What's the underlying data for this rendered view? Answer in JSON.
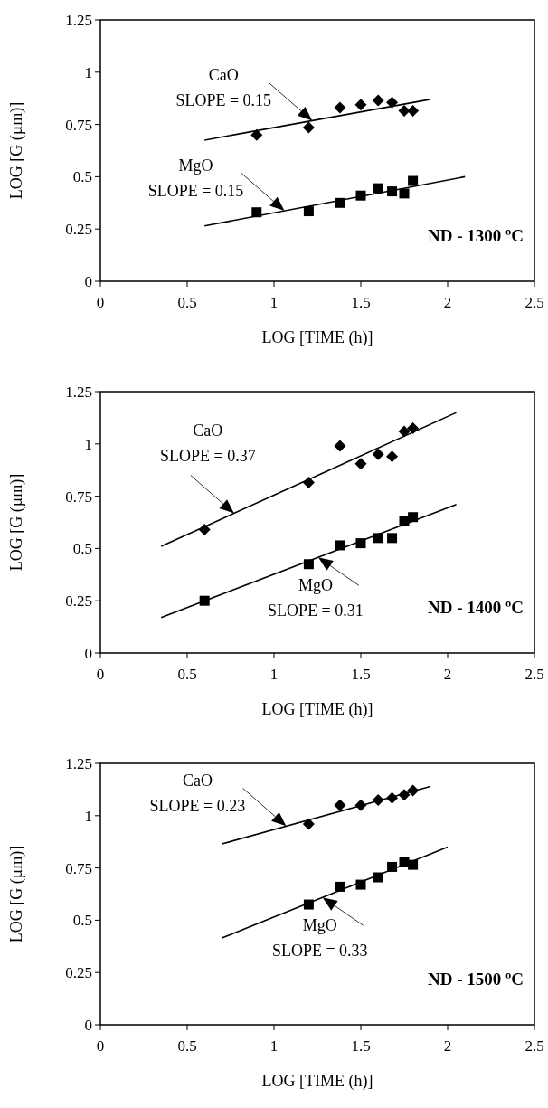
{
  "chart_data": [
    {
      "type": "scatter",
      "title": "ND - 1300 ºC",
      "xlabel": "LOG [TIME (h)]",
      "ylabel": "LOG [G (µm)]",
      "xlim": [
        0,
        2.5
      ],
      "ylim": [
        0,
        1.25
      ],
      "xticks": [
        0,
        0.5,
        1,
        1.5,
        2,
        2.5
      ],
      "yticks": [
        0,
        0.25,
        0.5,
        0.75,
        1,
        1.25
      ],
      "series": [
        {
          "type": "scatter",
          "marker": "diamond",
          "color": "#000000",
          "x": [
            0.9,
            1.2,
            1.38,
            1.5,
            1.6,
            1.68,
            1.75,
            1.8
          ],
          "values": [
            0.7,
            0.735,
            0.83,
            0.845,
            0.865,
            0.855,
            0.815,
            0.815
          ]
        },
        {
          "type": "scatter",
          "marker": "square",
          "color": "#000000",
          "x": [
            0.9,
            1.2,
            1.38,
            1.5,
            1.6,
            1.68,
            1.75,
            1.8
          ],
          "values": [
            0.33,
            0.335,
            0.375,
            0.41,
            0.445,
            0.43,
            0.42,
            0.48
          ]
        },
        {
          "type": "line",
          "marker": "none",
          "color": "#000000",
          "x": [
            0.6,
            1.9
          ],
          "values": [
            0.675,
            0.87
          ]
        },
        {
          "type": "line",
          "marker": "none",
          "color": "#000000",
          "x": [
            0.6,
            2.1
          ],
          "values": [
            0.265,
            0.5
          ]
        }
      ],
      "annotations": [
        {
          "text": "CaO\nSLOPE = 0.15",
          "x": 1.22,
          "y": 0.768
        },
        {
          "text": "MgO\nSLOPE = 0.15",
          "x": 1.06,
          "y": 0.337
        }
      ]
    },
    {
      "type": "scatter",
      "title": "ND - 1400 ºC",
      "xlabel": "LOG [TIME (h)]",
      "ylabel": "LOG [G (µm)]",
      "xlim": [
        0,
        2.5
      ],
      "ylim": [
        0,
        1.25
      ],
      "xticks": [
        0,
        0.5,
        1,
        1.5,
        2,
        2.5
      ],
      "yticks": [
        0,
        0.25,
        0.5,
        0.75,
        1,
        1.25
      ],
      "series": [
        {
          "type": "scatter",
          "marker": "diamond",
          "color": "#000000",
          "x": [
            0.6,
            1.2,
            1.38,
            1.5,
            1.6,
            1.68,
            1.75,
            1.8
          ],
          "values": [
            0.59,
            0.815,
            0.99,
            0.905,
            0.95,
            0.94,
            1.06,
            1.075
          ]
        },
        {
          "type": "scatter",
          "marker": "square",
          "color": "#000000",
          "x": [
            0.6,
            1.2,
            1.38,
            1.5,
            1.6,
            1.68,
            1.75,
            1.8
          ],
          "values": [
            0.25,
            0.425,
            0.515,
            0.525,
            0.55,
            0.55,
            0.63,
            0.65
          ]
        },
        {
          "type": "line",
          "marker": "none",
          "color": "#000000",
          "x": [
            0.35,
            2.05
          ],
          "values": [
            0.51,
            1.15
          ]
        },
        {
          "type": "line",
          "marker": "none",
          "color": "#000000",
          "x": [
            0.35,
            2.05
          ],
          "values": [
            0.17,
            0.71
          ]
        }
      ],
      "annotations": [
        {
          "text": "CaO\nSLOPE = 0.37",
          "x": 0.77,
          "y": 0.668
        },
        {
          "text": "MgO\nSLOPE = 0.31",
          "x": 1.255,
          "y": 0.457
        }
      ]
    },
    {
      "type": "scatter",
      "title": "ND - 1500 ºC",
      "xlabel": "LOG [TIME (h)]",
      "ylabel": "LOG [G (µm)]",
      "xlim": [
        0,
        2.5
      ],
      "ylim": [
        0,
        1.25
      ],
      "xticks": [
        0,
        0.5,
        1,
        1.5,
        2,
        2.5
      ],
      "yticks": [
        0,
        0.25,
        0.5,
        0.75,
        1,
        1.25
      ],
      "series": [
        {
          "type": "scatter",
          "marker": "diamond",
          "color": "#000000",
          "x": [
            1.2,
            1.38,
            1.5,
            1.6,
            1.68,
            1.75,
            1.8
          ],
          "values": [
            0.96,
            1.05,
            1.05,
            1.075,
            1.085,
            1.1,
            1.12
          ]
        },
        {
          "type": "scatter",
          "marker": "square",
          "color": "#000000",
          "x": [
            1.2,
            1.38,
            1.5,
            1.6,
            1.68,
            1.75,
            1.8
          ],
          "values": [
            0.575,
            0.66,
            0.67,
            0.705,
            0.755,
            0.78,
            0.765
          ]
        },
        {
          "type": "line",
          "marker": "none",
          "color": "#000000",
          "x": [
            0.7,
            1.9
          ],
          "values": [
            0.865,
            1.14
          ]
        },
        {
          "type": "line",
          "marker": "none",
          "color": "#000000",
          "x": [
            0.7,
            2.0
          ],
          "values": [
            0.415,
            0.85
          ]
        }
      ],
      "annotations": [
        {
          "text": "CaO\nSLOPE = 0.23",
          "x": 1.07,
          "y": 0.95
        },
        {
          "text": "MgO\nSLOPE = 0.33",
          "x": 1.28,
          "y": 0.609
        }
      ]
    }
  ]
}
